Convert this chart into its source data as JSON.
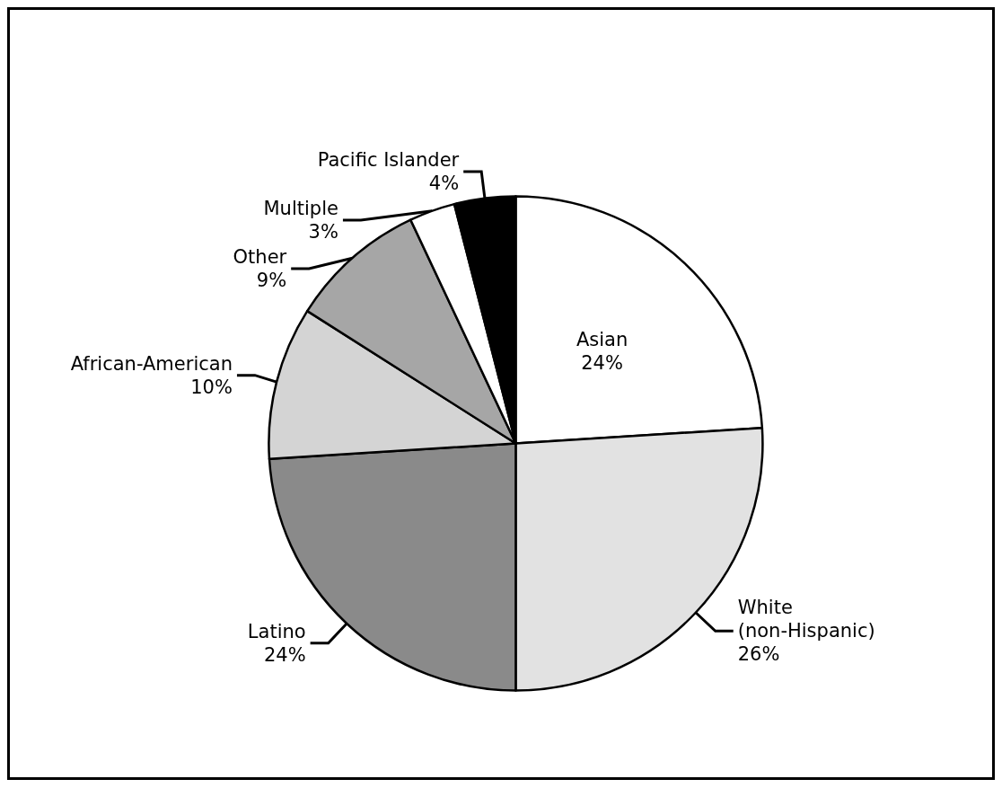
{
  "chart_data": {
    "type": "pie",
    "categories": [
      "Asian",
      "White\n(non-Hispanic)",
      "Latino",
      "African-American",
      "Other",
      "Multiple",
      "Pacific Islander"
    ],
    "values": [
      24,
      26,
      24,
      10,
      9,
      3,
      4
    ],
    "colors": [
      "#ffffff",
      "#e2e2e2",
      "#8a8a8a",
      "#d4d4d4",
      "#a6a6a6",
      "#ffffff",
      "#000000"
    ],
    "value_labels": [
      "24%",
      "26%",
      "24%",
      "10%",
      "9%",
      "3%",
      "4%"
    ],
    "legend": false
  }
}
